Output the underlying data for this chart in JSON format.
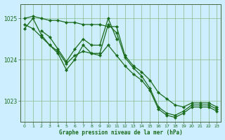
{
  "title": "Graphe pression niveau de la mer (hPa)",
  "background_color": "#cceeff",
  "plot_bg_color": "#cceeff",
  "grid_color": "#88bb88",
  "line_color": "#1a6b1a",
  "ylim": [
    1022.5,
    1025.35
  ],
  "yticks": [
    1023,
    1024,
    1025
  ],
  "xlim": [
    -0.5,
    23.5
  ],
  "xticks": [
    0,
    1,
    2,
    3,
    4,
    5,
    6,
    7,
    8,
    9,
    10,
    11,
    12,
    13,
    14,
    15,
    16,
    17,
    18,
    19,
    20,
    21,
    22,
    23
  ],
  "series": [
    {
      "x": [
        0,
        1,
        2,
        3,
        4,
        5,
        6,
        7,
        8,
        9,
        10,
        11,
        12,
        13,
        14,
        15,
        16,
        17,
        18,
        19,
        20,
        21,
        22,
        23
      ],
      "y": [
        1025.0,
        1025.05,
        1025.0,
        1024.95,
        1024.95,
        1024.9,
        1024.9,
        1024.85,
        1024.85,
        1024.85,
        1024.8,
        1024.8,
        1024.1,
        1023.85,
        1023.7,
        1023.5,
        1023.2,
        1023.05,
        1022.9,
        1022.85,
        1022.95,
        1022.95,
        1022.95,
        1022.85
      ]
    },
    {
      "x": [
        0,
        1,
        2,
        3,
        4,
        5,
        6,
        7,
        8,
        9,
        10,
        11,
        12,
        13,
        14,
        15,
        16,
        17,
        18,
        19,
        20,
        21,
        22,
        23
      ],
      "y": [
        1024.75,
        1025.0,
        1024.6,
        1024.35,
        1024.15,
        1023.75,
        1024.0,
        1024.35,
        1024.15,
        1024.15,
        1024.85,
        1024.65,
        1024.05,
        1023.8,
        1023.6,
        1023.3,
        1022.85,
        1022.7,
        1022.65,
        1022.75,
        1022.9,
        1022.9,
        1022.9,
        1022.8
      ]
    },
    {
      "x": [
        0,
        1,
        2,
        3,
        4,
        5,
        6,
        7,
        8,
        9,
        10,
        11,
        12,
        13,
        14,
        15,
        16,
        17,
        18,
        19,
        20,
        21,
        22,
        23
      ],
      "y": [
        1024.85,
        1024.75,
        1024.55,
        1024.35,
        1024.2,
        1023.9,
        1024.1,
        1024.2,
        1024.15,
        1024.1,
        1024.35,
        1024.1,
        1023.85,
        1023.65,
        1023.5,
        1023.25,
        1022.8,
        1022.65,
        1022.6,
        1022.7,
        1022.85,
        1022.85,
        1022.85,
        1022.75
      ]
    },
    {
      "x": [
        2,
        3,
        4,
        5,
        6,
        7,
        8,
        9,
        10,
        11
      ],
      "y": [
        1024.7,
        1024.55,
        1024.25,
        1023.95,
        1024.25,
        1024.5,
        1024.35,
        1024.35,
        1025.0,
        1024.5
      ]
    }
  ]
}
